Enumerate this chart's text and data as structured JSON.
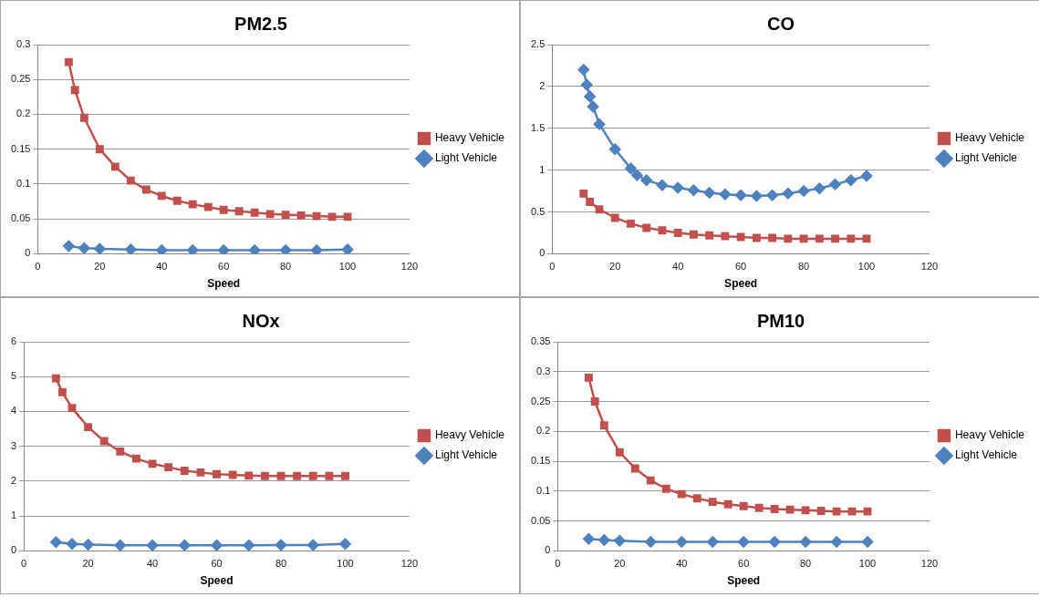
{
  "chart_data": [
    {
      "type": "line",
      "title": "PM2.5",
      "xlabel": "Speed",
      "xlim": [
        0,
        120
      ],
      "xticks": [
        0,
        20,
        40,
        60,
        80,
        100,
        120
      ],
      "ylim": [
        0,
        0.3
      ],
      "yticks": [
        0,
        0.05,
        0.1,
        0.15,
        0.2,
        0.25,
        0.3
      ],
      "grid": "y",
      "legend": "right",
      "series": [
        {
          "name": "Heavy Vehicle",
          "color": "#c0504d",
          "marker": "square",
          "x": [
            10,
            12,
            15,
            20,
            25,
            30,
            35,
            40,
            45,
            50,
            55,
            60,
            65,
            70,
            75,
            80,
            85,
            90,
            95,
            100
          ],
          "values": [
            0.275,
            0.235,
            0.195,
            0.15,
            0.125,
            0.105,
            0.092,
            0.083,
            0.076,
            0.071,
            0.067,
            0.063,
            0.061,
            0.059,
            0.057,
            0.056,
            0.055,
            0.054,
            0.053,
            0.053
          ]
        },
        {
          "name": "Light Vehicle",
          "color": "#4f81bd",
          "marker": "diamond",
          "x": [
            10,
            15,
            20,
            30,
            40,
            50,
            60,
            70,
            80,
            90,
            100
          ],
          "values": [
            0.011,
            0.008,
            0.007,
            0.006,
            0.005,
            0.005,
            0.005,
            0.005,
            0.005,
            0.005,
            0.006
          ]
        }
      ]
    },
    {
      "type": "line",
      "title": "CO",
      "xlabel": "Speed",
      "xlim": [
        0,
        120
      ],
      "xticks": [
        0,
        20,
        40,
        60,
        80,
        100,
        120
      ],
      "ylim": [
        0,
        2.5
      ],
      "yticks": [
        0,
        0.5,
        1,
        1.5,
        2,
        2.5
      ],
      "grid": "y",
      "legend": "right",
      "series": [
        {
          "name": "Heavy Vehicle",
          "color": "#c0504d",
          "marker": "square",
          "x": [
            10,
            12,
            15,
            20,
            25,
            30,
            35,
            40,
            45,
            50,
            55,
            60,
            65,
            70,
            75,
            80,
            85,
            90,
            95,
            100
          ],
          "values": [
            0.72,
            0.62,
            0.53,
            0.43,
            0.36,
            0.31,
            0.28,
            0.25,
            0.23,
            0.22,
            0.21,
            0.2,
            0.19,
            0.19,
            0.18,
            0.18,
            0.18,
            0.18,
            0.18,
            0.18
          ]
        },
        {
          "name": "Light Vehicle",
          "color": "#4f81bd",
          "marker": "diamond",
          "x": [
            10,
            11,
            12,
            13,
            15,
            20,
            25,
            27,
            30,
            35,
            40,
            45,
            50,
            55,
            60,
            65,
            70,
            75,
            80,
            85,
            90,
            95,
            100
          ],
          "values": [
            2.2,
            2.02,
            1.88,
            1.76,
            1.55,
            1.25,
            1.02,
            0.94,
            0.88,
            0.82,
            0.79,
            0.76,
            0.73,
            0.71,
            0.7,
            0.69,
            0.7,
            0.72,
            0.75,
            0.78,
            0.83,
            0.88,
            0.93
          ]
        }
      ]
    },
    {
      "type": "line",
      "title": "NOx",
      "xlabel": "Speed",
      "xlim": [
        0,
        120
      ],
      "xticks": [
        0,
        20,
        40,
        60,
        80,
        100,
        120
      ],
      "ylim": [
        0,
        6
      ],
      "yticks": [
        0,
        1,
        2,
        3,
        4,
        5,
        6
      ],
      "grid": "y",
      "legend": "right",
      "series": [
        {
          "name": "Heavy Vehicle",
          "color": "#c0504d",
          "marker": "square",
          "x": [
            10,
            12,
            15,
            20,
            25,
            30,
            35,
            40,
            45,
            50,
            55,
            60,
            65,
            70,
            75,
            80,
            85,
            90,
            95,
            100
          ],
          "values": [
            4.95,
            4.55,
            4.1,
            3.55,
            3.15,
            2.85,
            2.65,
            2.5,
            2.4,
            2.3,
            2.25,
            2.2,
            2.18,
            2.16,
            2.15,
            2.15,
            2.15,
            2.15,
            2.15,
            2.15
          ]
        },
        {
          "name": "Light Vehicle",
          "color": "#4f81bd",
          "marker": "diamond",
          "x": [
            10,
            15,
            20,
            30,
            40,
            50,
            60,
            70,
            80,
            90,
            100
          ],
          "values": [
            0.25,
            0.2,
            0.18,
            0.16,
            0.16,
            0.16,
            0.16,
            0.16,
            0.17,
            0.17,
            0.2
          ]
        }
      ]
    },
    {
      "type": "line",
      "title": "PM10",
      "xlabel": "Speed",
      "xlim": [
        0,
        120
      ],
      "xticks": [
        0,
        20,
        40,
        60,
        80,
        100,
        120
      ],
      "ylim": [
        0,
        0.35
      ],
      "yticks": [
        0,
        0.05,
        0.1,
        0.15,
        0.2,
        0.25,
        0.3,
        0.35
      ],
      "grid": "y",
      "legend": "right",
      "series": [
        {
          "name": "Heavy Vehicle",
          "color": "#c0504d",
          "marker": "square",
          "x": [
            10,
            12,
            15,
            20,
            25,
            30,
            35,
            40,
            45,
            50,
            55,
            60,
            65,
            70,
            75,
            80,
            85,
            90,
            95,
            100
          ],
          "values": [
            0.29,
            0.25,
            0.21,
            0.165,
            0.138,
            0.118,
            0.104,
            0.095,
            0.088,
            0.082,
            0.078,
            0.075,
            0.072,
            0.07,
            0.069,
            0.068,
            0.067,
            0.066,
            0.066,
            0.066
          ]
        },
        {
          "name": "Light Vehicle",
          "color": "#4f81bd",
          "marker": "diamond",
          "x": [
            10,
            15,
            20,
            30,
            40,
            50,
            60,
            70,
            80,
            90,
            100
          ],
          "values": [
            0.02,
            0.018,
            0.017,
            0.015,
            0.015,
            0.015,
            0.015,
            0.015,
            0.015,
            0.015,
            0.015
          ]
        }
      ]
    }
  ]
}
